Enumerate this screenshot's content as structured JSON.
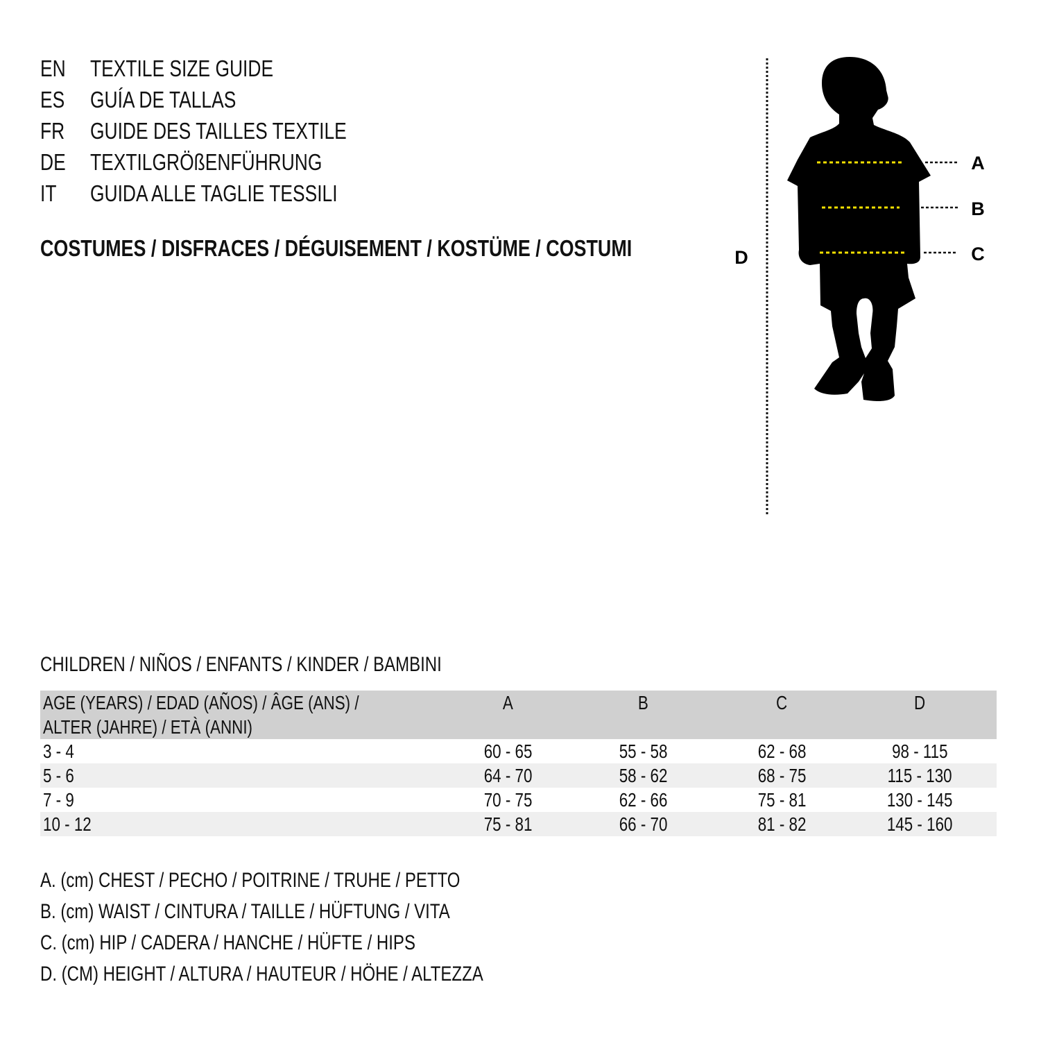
{
  "titles": [
    {
      "code": "EN",
      "text": "TEXTILE SIZE GUIDE"
    },
    {
      "code": "ES",
      "text": "GUÍA DE TALLAS"
    },
    {
      "code": "FR",
      "text": "GUIDE DES TAILLES TEXTILE"
    },
    {
      "code": "DE",
      "text": "TEXTILGRÖßENFÜHRUNG"
    },
    {
      "code": "IT",
      "text": "GUIDA ALLE TAGLIE TESSILI"
    }
  ],
  "category": "COSTUMES / DISFRACES / DÉGUISEMENT / KOSTÜME / COSTUMI",
  "figure": {
    "labels": {
      "a": "A",
      "b": "B",
      "c": "C",
      "d": "D"
    },
    "guide_color": "#f5e000",
    "silhouette_color": "#000000"
  },
  "section": "CHILDREN / NIÑOS / ENFANTS / KINDER / BAMBINI",
  "table": {
    "header": {
      "age_line1": "AGE (YEARS) / EDAD (AÑOS) / ÂGE (ANS) /",
      "age_line2": "ALTER (JAHRE) / ETÀ (ANNI)",
      "cols": [
        "A",
        "B",
        "C",
        "D"
      ]
    },
    "header_bg": "#d0d0d0",
    "rows": [
      {
        "age": "3 - 4",
        "a": "60 - 65",
        "b": "55 - 58",
        "c": "62 - 68",
        "d": "98 - 115"
      },
      {
        "age": "5 - 6",
        "a": "64 - 70",
        "b": "58 - 62",
        "c": "68 - 75",
        "d": "115 - 130"
      },
      {
        "age": "7 - 9",
        "a": "70 - 75",
        "b": "62 - 66",
        "c": "75 - 81",
        "d": "130 - 145"
      },
      {
        "age": "10 - 12",
        "a": "75 - 81",
        "b": "66 - 70",
        "c": "81 - 82",
        "d": "145 - 160"
      }
    ]
  },
  "legend": [
    "A. (cm) CHEST / PECHO / POITRINE / TRUHE / PETTO",
    "B. (cm) WAIST / CINTURA / TAILLE / HÜFTUNG / VITA",
    "C. (cm) HIP / CADERA / HANCHE / HÜFTE / HIPS",
    "D. (CM) HEIGHT / ALTURA / HAUTEUR / HÖHE / ALTEZZA"
  ]
}
